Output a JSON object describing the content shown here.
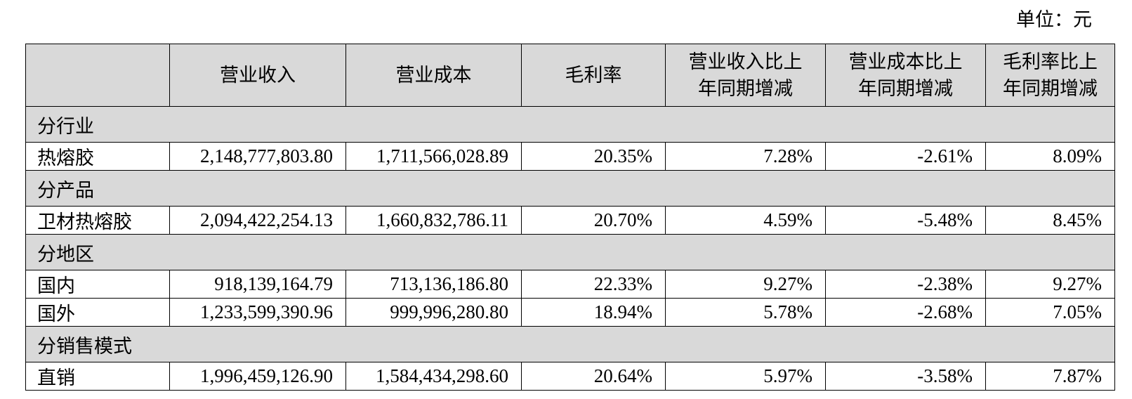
{
  "unit": "单位：元",
  "table": {
    "header": [
      [
        "营业收入"
      ],
      [
        "营业成本"
      ],
      [
        "毛利率"
      ],
      [
        "营业收入比上",
        "年同期增减"
      ],
      [
        "营业成本比上",
        "年同期增减"
      ],
      [
        "毛利率比上",
        "年同期增减"
      ]
    ],
    "sections": [
      {
        "title": "分行业",
        "rows": [
          [
            "热熔胶",
            "2,148,777,803.80",
            "1,711,566,028.89",
            "20.35%",
            "7.28%",
            "-2.61%",
            "8.09%"
          ]
        ]
      },
      {
        "title": "分产品",
        "rows": [
          [
            "卫材热熔胶",
            "2,094,422,254.13",
            "1,660,832,786.11",
            "20.70%",
            "4.59%",
            "-5.48%",
            "8.45%"
          ]
        ]
      },
      {
        "title": "分地区",
        "rows": [
          [
            "国内",
            "918,139,164.79",
            "713,136,186.80",
            "22.33%",
            "9.27%",
            "-2.38%",
            "9.27%"
          ],
          [
            "国外",
            "1,233,599,390.96",
            "999,996,280.80",
            "18.94%",
            "5.78%",
            "-2.68%",
            "7.05%"
          ]
        ]
      },
      {
        "title": "分销售模式",
        "rows": [
          [
            "直销",
            "1,996,459,126.90",
            "1,584,434,298.60",
            "20.64%",
            "5.97%",
            "-3.58%",
            "7.87%"
          ]
        ]
      }
    ]
  }
}
